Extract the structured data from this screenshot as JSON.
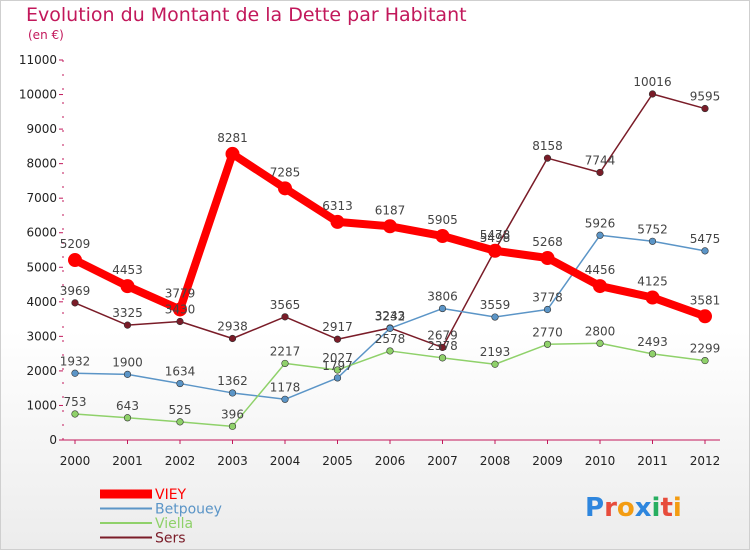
{
  "title": "Evolution du Montant de la Dette par Habitant",
  "subtitle": "(en €)",
  "logo": {
    "letters": [
      "P",
      "r",
      "o",
      "x",
      "i",
      "t",
      "i"
    ],
    "colors": [
      "#2e86de",
      "#e74c3c",
      "#f39c12",
      "#2e86de",
      "#27ae60",
      "#e74c3c",
      "#f39c12"
    ]
  },
  "chart_data": {
    "type": "line",
    "x": [
      "2000",
      "2001",
      "2002",
      "2003",
      "2004",
      "2005",
      "2006",
      "2007",
      "2008",
      "2009",
      "2010",
      "2011",
      "2012"
    ],
    "yticks": [
      "0",
      "1000",
      "2000",
      "3000",
      "4000",
      "5000",
      "6000",
      "7000",
      "8000",
      "9000",
      "10000",
      "11000"
    ],
    "ylim": [
      0,
      11000
    ],
    "grid": false,
    "legend": "bottom-left",
    "series": [
      {
        "name": "VIEY",
        "color": "#ff0000",
        "values": [
          5209,
          4453,
          3779,
          8281,
          7285,
          6313,
          6187,
          5905,
          5478,
          5268,
          4456,
          4125,
          3581
        ]
      },
      {
        "name": "Betpouey",
        "color": "#5b95c7",
        "values": [
          1932,
          1900,
          1634,
          1362,
          1178,
          1797,
          3232,
          3806,
          3559,
          3778,
          5926,
          5752,
          5475
        ]
      },
      {
        "name": "Viella",
        "color": "#8fd16a",
        "values": [
          753,
          643,
          525,
          396,
          2217,
          2027,
          2578,
          2378,
          2193,
          2770,
          2800,
          2493,
          2299
        ]
      },
      {
        "name": "Sers",
        "color": "#7a1c28",
        "values": [
          3969,
          3325,
          3430,
          2938,
          3565,
          2917,
          3243,
          2679,
          5498,
          8158,
          7744,
          10016,
          9595
        ]
      }
    ]
  }
}
